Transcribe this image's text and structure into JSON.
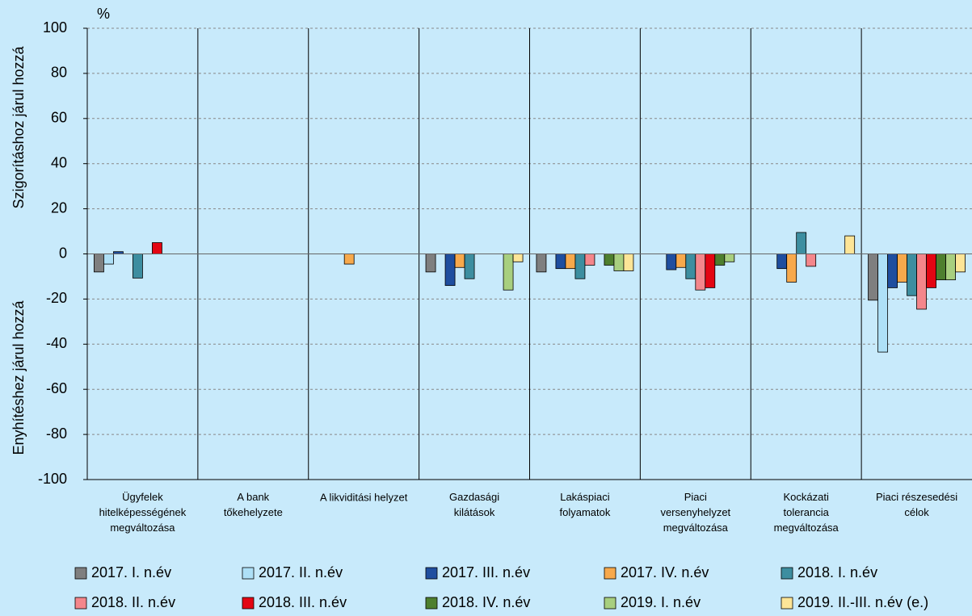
{
  "chart_data": {
    "type": "bar",
    "unit": "%",
    "y_label_top": "Szigorításhoz járul hozzá",
    "y_label_bottom": "Enyhítéshez járul hozzá",
    "categories": [
      "Ügyfelek\nhitelképességének\nmegváltozása",
      "A bank\ntőkehelyzete",
      "A likviditási helyzet",
      "Gazdasági\nkilátások",
      "Lakáspiaci\nfolyamatok",
      "Piaci\nversenyhelyzet\nmegváltozása",
      "Kockázati\ntolerancia\nmegváltozása",
      "Piaci részesedési\ncélok"
    ],
    "series": [
      {
        "name": "2017. I. n.év",
        "color": "#7f7f7f",
        "values": [
          -8,
          0,
          0,
          -8,
          -8,
          0,
          0,
          -20.5
        ]
      },
      {
        "name": "2017. II. n.év",
        "color": "#aee0f7",
        "values": [
          -4.5,
          0,
          0,
          0,
          0,
          0,
          0,
          -43.5
        ]
      },
      {
        "name": "2017. III. n.év",
        "color": "#1f4e9f",
        "values": [
          1,
          0,
          0,
          -14,
          -6.5,
          -7,
          -6.5,
          -15
        ]
      },
      {
        "name": "2017. IV. n.év",
        "color": "#f7a94c",
        "values": [
          0,
          0,
          -4.5,
          -6,
          -6.5,
          -6,
          -12.5,
          -12.5
        ]
      },
      {
        "name": "2018. I. n.év",
        "color": "#3d8ea0",
        "values": [
          -10.7,
          0,
          0,
          -11,
          -11,
          -11,
          9.5,
          -18.5
        ]
      },
      {
        "name": "2018. II. n.év",
        "color": "#f4868b",
        "values": [
          0,
          0,
          0,
          0,
          -5,
          -16,
          -5.5,
          -24.5
        ]
      },
      {
        "name": "2018. III. n.év",
        "color": "#e30613",
        "values": [
          5,
          0,
          0,
          0,
          0,
          -15,
          0,
          -15
        ]
      },
      {
        "name": "2018. IV. n.év",
        "color": "#4e7f2e",
        "values": [
          0,
          0,
          0,
          0,
          -5,
          -5,
          0,
          -11.5
        ]
      },
      {
        "name": "2019. I. n.év",
        "color": "#a8cf7f",
        "values": [
          0,
          0,
          0,
          -16,
          -7.5,
          -3.5,
          0,
          -11.5
        ]
      },
      {
        "name": "2019. II.-III. n.év (e.)",
        "color": "#fde597",
        "values": [
          0,
          0,
          0,
          -3.5,
          -7.5,
          0,
          8,
          -8
        ]
      }
    ],
    "ylim": [
      -100,
      100
    ],
    "yticks": [
      -100,
      -80,
      -60,
      -40,
      -20,
      0,
      20,
      40,
      60,
      80,
      100
    ],
    "grid": true
  }
}
